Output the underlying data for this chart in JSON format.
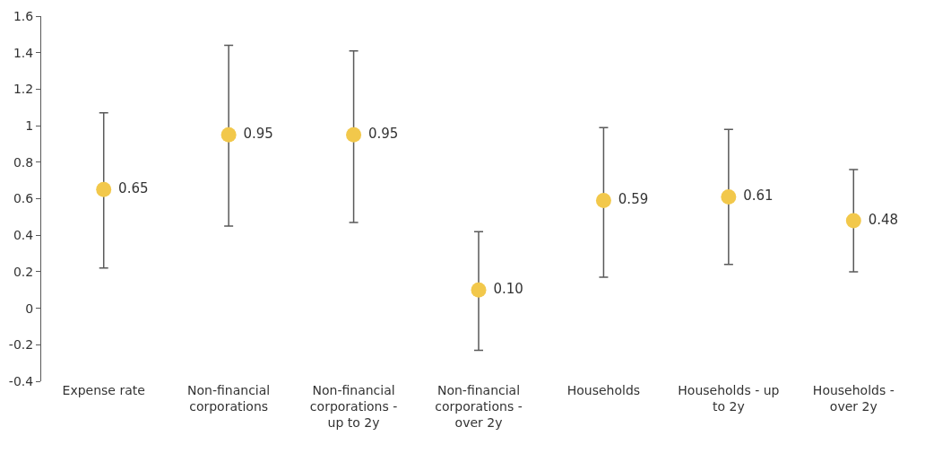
{
  "chart_data": {
    "type": "scatter",
    "categories": [
      "Expense rate",
      "Non-financial corporations",
      "Non-financial corporations - up to 2y",
      "Non-financial corporations - over 2y",
      "Households",
      "Households - up to 2y",
      "Households - over 2y"
    ],
    "values": [
      0.65,
      0.95,
      0.95,
      0.1,
      0.59,
      0.61,
      0.48
    ],
    "value_labels": [
      "0.65",
      "0.95",
      "0.95",
      "0.10",
      "0.59",
      "0.61",
      "0.48"
    ],
    "errors": [
      [
        0.22,
        1.07
      ],
      [
        0.45,
        1.44
      ],
      [
        0.47,
        1.41
      ],
      [
        -0.23,
        0.42
      ],
      [
        0.17,
        0.99
      ],
      [
        0.24,
        0.98
      ],
      [
        0.2,
        0.76
      ]
    ],
    "color": "#f2c84b",
    "ylim": [
      -0.4,
      1.6
    ],
    "yticks": [
      -0.4,
      -0.2,
      0,
      0.2,
      0.4,
      0.6,
      0.8,
      1,
      1.2,
      1.4,
      1.6
    ],
    "marker": "circle"
  }
}
